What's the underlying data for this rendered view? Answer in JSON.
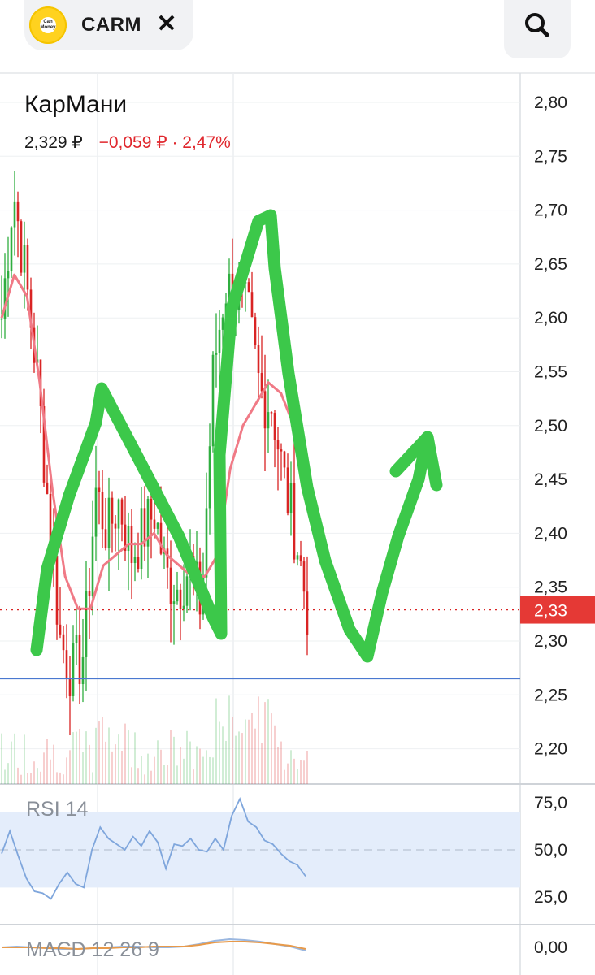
{
  "header": {
    "logo_text": "Can Money",
    "ticker": "CARM",
    "close_label": "✕",
    "search_icon": "search-icon"
  },
  "instrument": {
    "name": "КарМани",
    "price": "2,329 ₽",
    "change": "−0,059 ₽ · 2,47%"
  },
  "colors": {
    "up": "#2fae3f",
    "down": "#d92424",
    "ma": "#f07a86",
    "annotation": "#3cc84a",
    "price_tag": "#e53935",
    "support": "#4a78d0",
    "rsi": "#7fa6dc",
    "rsi_band": "#e4edfb",
    "macd": "#9ab7e0",
    "signal": "#e89a4a"
  },
  "chart_data": [
    {
      "type": "candlestick",
      "title": "КарМани",
      "y_ticks": [
        "2,80",
        "2,75",
        "2,70",
        "2,65",
        "2,60",
        "2,55",
        "2,50",
        "2,45",
        "2,40",
        "2,35",
        "2,30",
        "2,25",
        "2,20"
      ],
      "ylim": [
        2.17,
        2.82
      ],
      "current_price_label": "2,33",
      "current_price": 2.329,
      "support_level": 2.265,
      "price_points": [
        2.6,
        2.72,
        2.64,
        2.55,
        2.42,
        2.3,
        2.27,
        2.29,
        2.44,
        2.4,
        2.43,
        2.38,
        2.4,
        2.42,
        2.36,
        2.35,
        2.37,
        2.33,
        2.55,
        2.63,
        2.62,
        2.6,
        2.53,
        2.52,
        2.45,
        2.4,
        2.33
      ],
      "ma_points": [
        2.6,
        2.64,
        2.62,
        2.54,
        2.44,
        2.36,
        2.33,
        2.33,
        2.37,
        2.38,
        2.39,
        2.39,
        2.4,
        2.38,
        2.37,
        2.36,
        2.36,
        2.38,
        2.46,
        2.5,
        2.52,
        2.54,
        2.53,
        2.5,
        2.46
      ]
    },
    {
      "type": "line",
      "title": "RSI 14",
      "y_ticks": [
        "75,0",
        "50,0",
        "25,0"
      ],
      "ylim": [
        20,
        80
      ],
      "band": [
        30,
        70
      ],
      "values": [
        48,
        60,
        47,
        35,
        28,
        27,
        24,
        32,
        38,
        32,
        30,
        50,
        62,
        56,
        53,
        50,
        57,
        52,
        60,
        54,
        40,
        53,
        52,
        56,
        50,
        49,
        56,
        50,
        68,
        77,
        65,
        62,
        55,
        53,
        48,
        44,
        42,
        36
      ]
    },
    {
      "type": "line",
      "title": "MACD 12 26 9",
      "y_ticks": [
        "0,00"
      ],
      "ylim": [
        -0.02,
        0.025
      ],
      "macd": [
        0.0,
        0.001,
        0.0,
        -0.001,
        -0.002,
        -0.002,
        -0.001,
        0.0,
        0.001,
        0.001,
        0.0,
        0.0,
        0.001,
        0.004,
        0.008,
        0.01,
        0.009,
        0.007,
        0.004,
        0.001,
        -0.004
      ],
      "signal": [
        0.0,
        0.0,
        0.0,
        -0.001,
        -0.001,
        -0.002,
        -0.001,
        -0.001,
        0.0,
        0.0,
        0.001,
        0.001,
        0.001,
        0.003,
        0.006,
        0.007,
        0.007,
        0.006,
        0.004,
        0.002,
        -0.002
      ]
    }
  ]
}
